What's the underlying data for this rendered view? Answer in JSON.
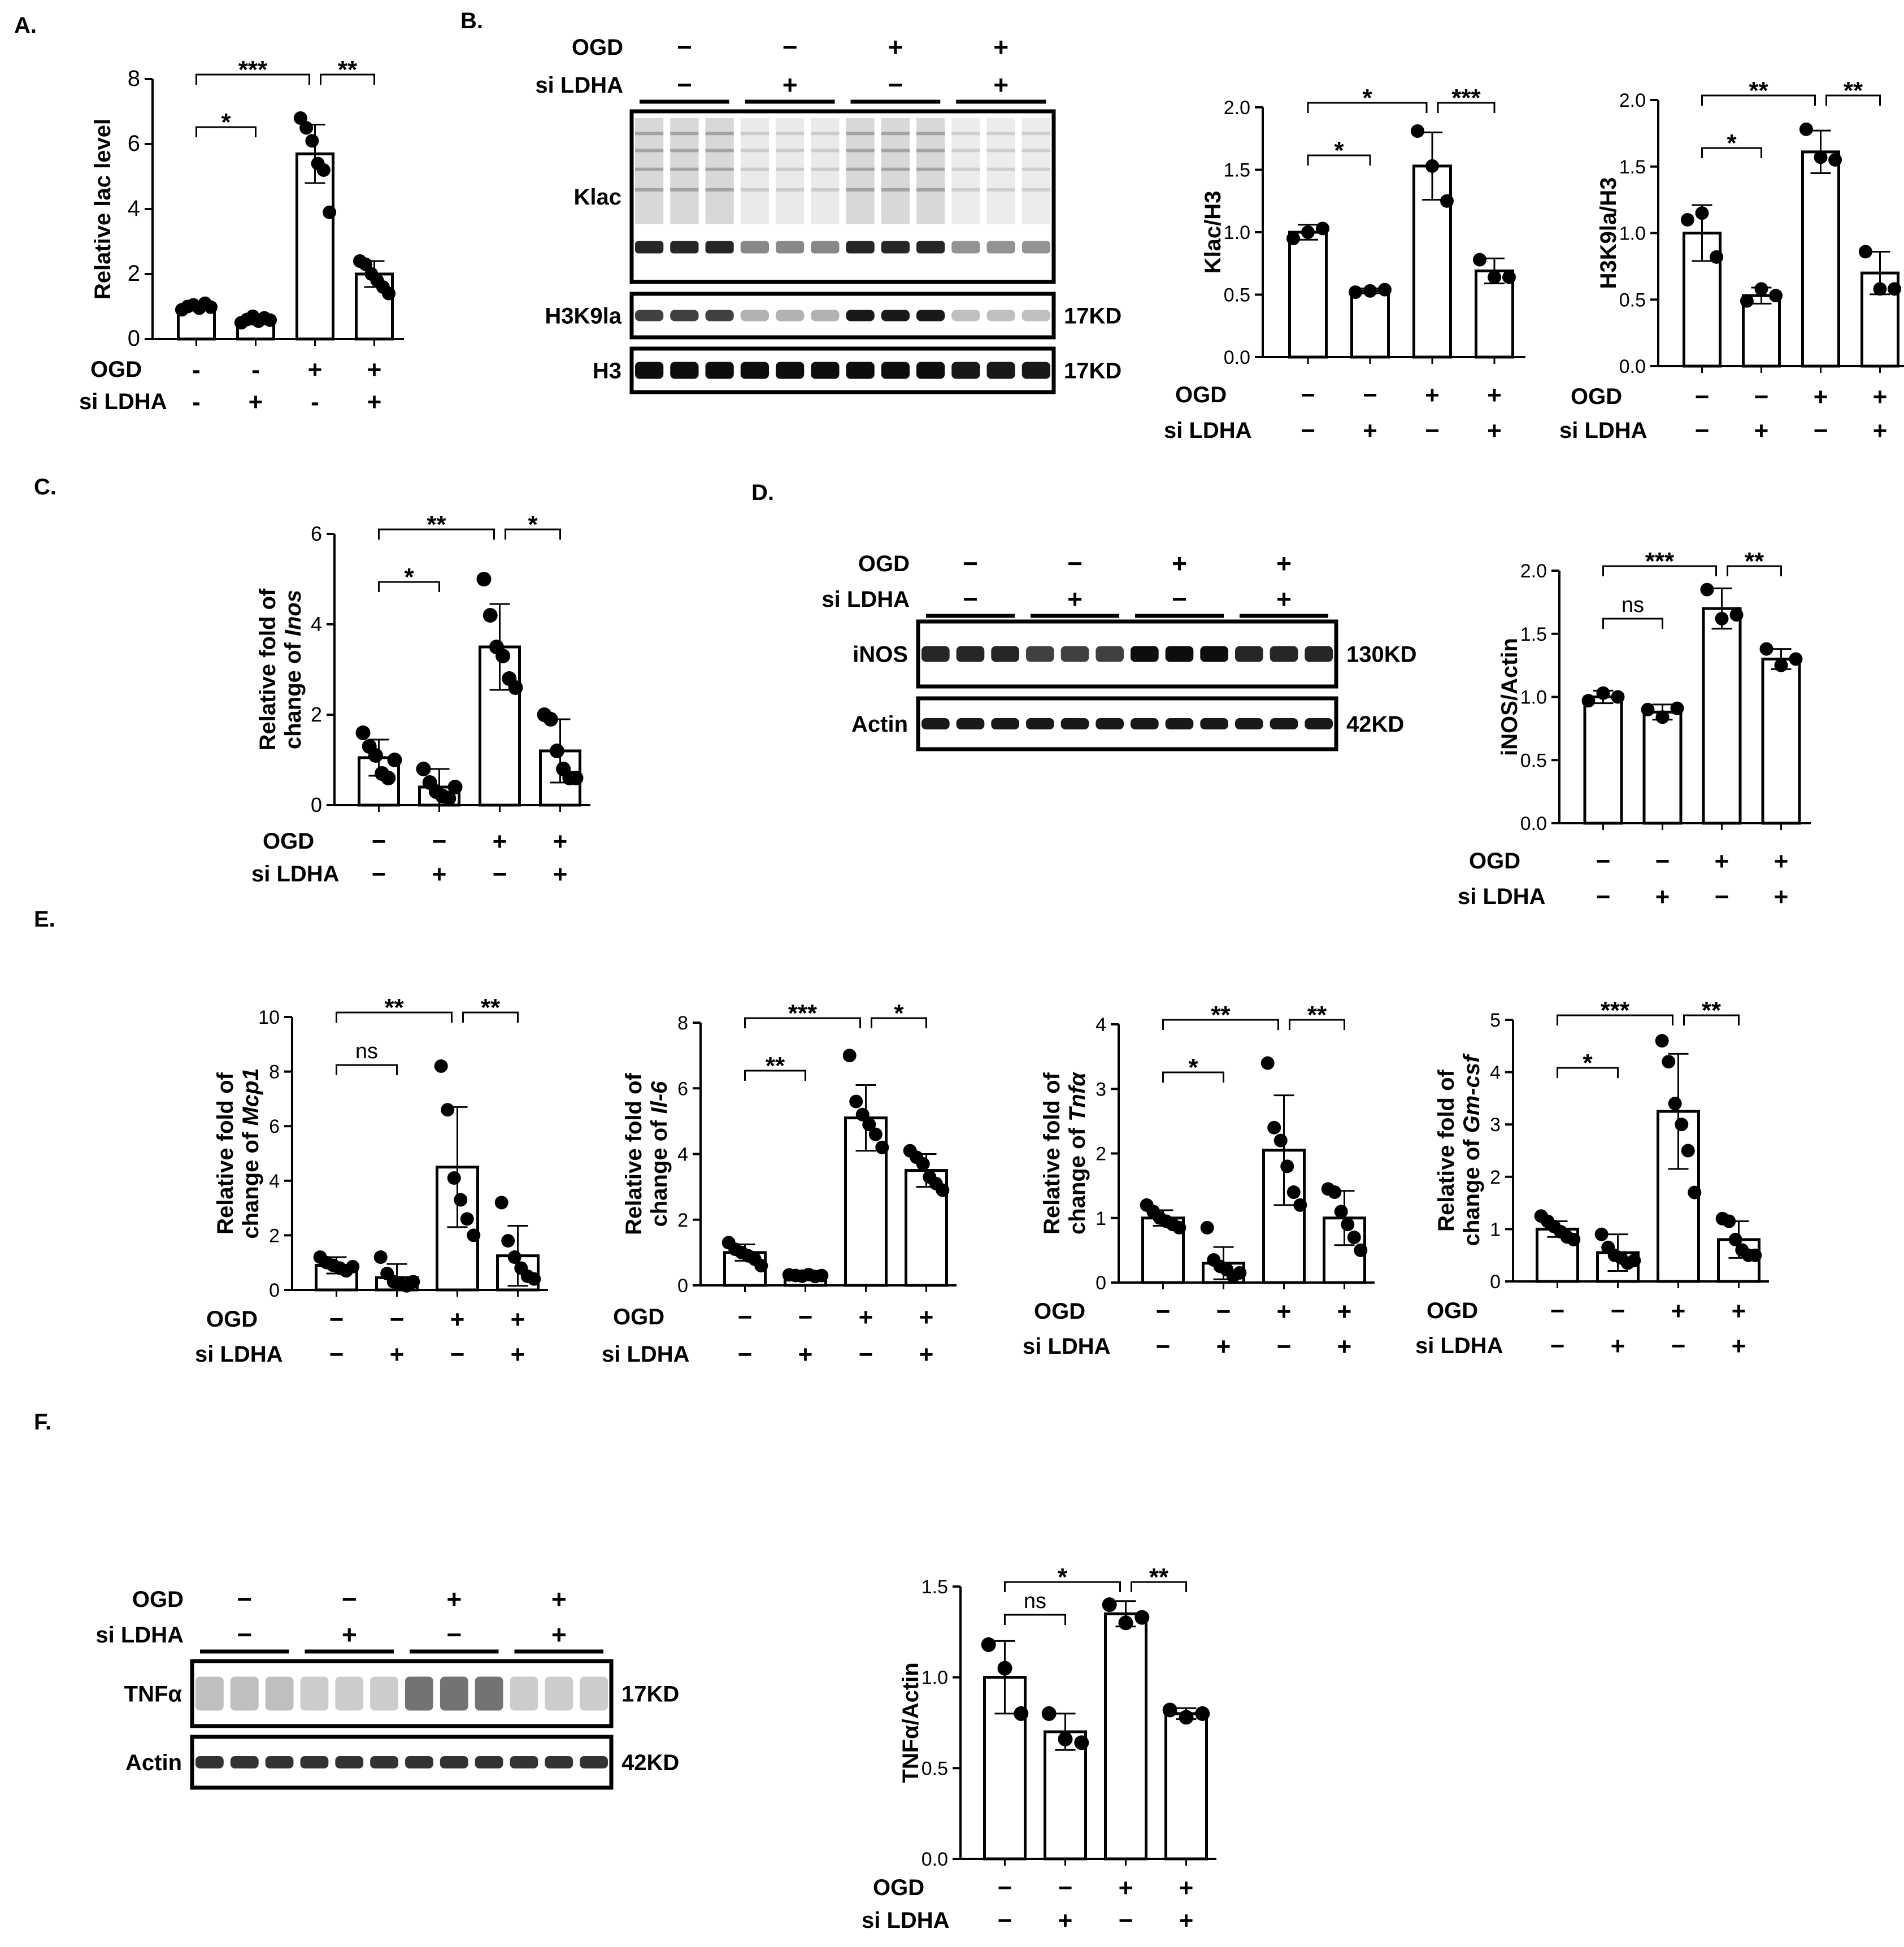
{
  "panels": {
    "a": "A.",
    "b": "B.",
    "c": "C.",
    "d": "D.",
    "e": "E.",
    "f": "F."
  },
  "conditions": {
    "ogd_label": "OGD",
    "si_label": "si LDHA",
    "ogd_signs_dash": [
      "-",
      "-",
      "+",
      "+"
    ],
    "si_signs_dash": [
      "-",
      "+",
      "-",
      "+"
    ],
    "ogd_signs": [
      "−",
      "−",
      "+",
      "+"
    ],
    "si_signs": [
      "−",
      "+",
      "−",
      "+"
    ]
  },
  "blots": {
    "b": {
      "rows": [
        {
          "label": "Klac",
          "size": ""
        },
        {
          "label": "H3K9la",
          "size": "17KD"
        },
        {
          "label": "H3",
          "size": "17KD"
        }
      ]
    },
    "d": {
      "rows": [
        {
          "label": "iNOS",
          "size": "130KD"
        },
        {
          "label": "Actin",
          "size": "42KD"
        }
      ]
    },
    "f": {
      "rows": [
        {
          "label": "TNFα",
          "size": "17KD"
        },
        {
          "label": "Actin",
          "size": "42KD"
        }
      ]
    }
  },
  "chart_data": [
    {
      "id": "A",
      "type": "bar",
      "ylabel": "Relative lac level",
      "ylabel_italic": "",
      "ylim": [
        0,
        8
      ],
      "yticks": [
        "0",
        "2",
        "4",
        "6",
        "8"
      ],
      "tickvals": [
        0,
        2,
        4,
        6,
        8
      ],
      "categories": [
        "OGD-/siLDHA-",
        "OGD-/siLDHA+",
        "OGD+/siLDHA-",
        "OGD+/siLDHA+"
      ],
      "values": [
        1.0,
        0.6,
        5.7,
        2.0
      ],
      "errors": [
        0.1,
        0.15,
        0.9,
        0.4
      ],
      "points": [
        [
          0.9,
          1.0,
          1.05,
          0.95,
          1.1,
          0.98
        ],
        [
          0.5,
          0.6,
          0.7,
          0.55,
          0.65,
          0.58
        ],
        [
          6.8,
          6.5,
          6.1,
          5.4,
          5.2,
          3.9
        ],
        [
          2.4,
          2.3,
          2.0,
          1.8,
          1.6,
          1.4
        ]
      ],
      "signs_style": "dash",
      "comparisons": [
        {
          "pair": [
            0,
            1
          ],
          "label": "*"
        },
        {
          "pair": [
            0,
            2
          ],
          "label": "***"
        },
        {
          "pair": [
            2,
            3
          ],
          "label": "**"
        }
      ]
    },
    {
      "id": "B1",
      "type": "bar",
      "ylabel": "Klac/H3",
      "ylabel_italic": "",
      "ylim": [
        0,
        2.0
      ],
      "yticks": [
        "0.0",
        "0.5",
        "1.0",
        "1.5",
        "2.0"
      ],
      "tickvals": [
        0,
        0.5,
        1.0,
        1.5,
        2.0
      ],
      "categories": [
        "OGD-/siLDHA-",
        "OGD-/siLDHA+",
        "OGD+/siLDHA-",
        "OGD+/siLDHA+"
      ],
      "values": [
        1.0,
        0.53,
        1.53,
        0.69
      ],
      "errors": [
        0.06,
        0.02,
        0.27,
        0.1
      ],
      "points": [
        [
          0.95,
          1.0,
          1.03
        ],
        [
          0.52,
          0.53,
          0.54
        ],
        [
          1.81,
          1.53,
          1.25
        ],
        [
          0.78,
          0.64,
          0.64
        ]
      ],
      "signs_style": "glyph",
      "comparisons": [
        {
          "pair": [
            0,
            1
          ],
          "label": "*"
        },
        {
          "pair": [
            0,
            2
          ],
          "label": "*"
        },
        {
          "pair": [
            2,
            3
          ],
          "label": "***"
        }
      ]
    },
    {
      "id": "B2",
      "type": "bar",
      "ylabel": "H3K9la/H3",
      "ylabel_italic": "",
      "ylim": [
        0,
        2.0
      ],
      "yticks": [
        "0.0",
        "0.5",
        "1.0",
        "1.5",
        "2.0"
      ],
      "tickvals": [
        0,
        0.5,
        1.0,
        1.5,
        2.0
      ],
      "categories": [
        "OGD-/siLDHA-",
        "OGD-/siLDHA+",
        "OGD+/siLDHA-",
        "OGD+/siLDHA+"
      ],
      "values": [
        1.0,
        0.53,
        1.61,
        0.7
      ],
      "errors": [
        0.21,
        0.06,
        0.16,
        0.16
      ],
      "points": [
        [
          1.1,
          1.15,
          0.82
        ],
        [
          0.49,
          0.58,
          0.53
        ],
        [
          1.78,
          1.57,
          1.55
        ],
        [
          0.86,
          0.58,
          0.58
        ]
      ],
      "signs_style": "glyph",
      "comparisons": [
        {
          "pair": [
            0,
            1
          ],
          "label": "*"
        },
        {
          "pair": [
            0,
            2
          ],
          "label": "**"
        },
        {
          "pair": [
            2,
            3
          ],
          "label": "**"
        }
      ]
    },
    {
      "id": "C",
      "type": "bar",
      "ylabel": "Relative fold of",
      "ylabel2": "change of ",
      "ylabel_italic": "Inos",
      "ylim": [
        0,
        6
      ],
      "yticks": [
        "0",
        "2",
        "4",
        "6"
      ],
      "tickvals": [
        0,
        2,
        4,
        6
      ],
      "categories": [
        "OGD-/siLDHA-",
        "OGD-/siLDHA+",
        "OGD+/siLDHA-",
        "OGD+/siLDHA+"
      ],
      "values": [
        1.05,
        0.4,
        3.5,
        1.2
      ],
      "errors": [
        0.4,
        0.4,
        0.95,
        0.7
      ],
      "points": [
        [
          1.6,
          1.3,
          1.1,
          0.7,
          0.6,
          1.0
        ],
        [
          0.8,
          0.5,
          0.3,
          0.2,
          0.15,
          0.4
        ],
        [
          5.0,
          4.2,
          3.5,
          3.3,
          2.8,
          2.6
        ],
        [
          2.0,
          1.9,
          1.2,
          0.8,
          0.6,
          0.6
        ]
      ],
      "signs_style": "glyph",
      "comparisons": [
        {
          "pair": [
            0,
            1
          ],
          "label": "*"
        },
        {
          "pair": [
            0,
            2
          ],
          "label": "**"
        },
        {
          "pair": [
            2,
            3
          ],
          "label": "*"
        }
      ]
    },
    {
      "id": "D",
      "type": "bar",
      "ylabel": "iNOS/Actin",
      "ylabel_italic": "",
      "ylim": [
        0,
        2.0
      ],
      "yticks": [
        "0.0",
        "0.5",
        "1.0",
        "1.5",
        "2.0"
      ],
      "tickvals": [
        0,
        0.5,
        1.0,
        1.5,
        2.0
      ],
      "categories": [
        "OGD-/siLDHA-",
        "OGD-/siLDHA+",
        "OGD+/siLDHA-",
        "OGD+/siLDHA+"
      ],
      "values": [
        1.0,
        0.88,
        1.7,
        1.3
      ],
      "errors": [
        0.05,
        0.06,
        0.16,
        0.08
      ],
      "points": [
        [
          0.97,
          1.03,
          1.0
        ],
        [
          0.9,
          0.84,
          0.91
        ],
        [
          1.85,
          1.62,
          1.65
        ],
        [
          1.38,
          1.25,
          1.3
        ]
      ],
      "signs_style": "glyph",
      "comparisons": [
        {
          "pair": [
            0,
            1
          ],
          "label": "ns"
        },
        {
          "pair": [
            0,
            2
          ],
          "label": "***"
        },
        {
          "pair": [
            2,
            3
          ],
          "label": "**"
        }
      ]
    },
    {
      "id": "E1",
      "type": "bar",
      "ylabel": "Relative fold of",
      "ylabel2": "change of ",
      "ylabel_italic": "Mcp1",
      "ylim": [
        0,
        10
      ],
      "yticks": [
        "0",
        "2",
        "4",
        "6",
        "8",
        "10"
      ],
      "tickvals": [
        0,
        2,
        4,
        6,
        8,
        10
      ],
      "categories": [
        "OGD-/siLDHA-",
        "OGD-/siLDHA+",
        "OGD+/siLDHA-",
        "OGD+/siLDHA+"
      ],
      "values": [
        0.9,
        0.45,
        4.5,
        1.25
      ],
      "errors": [
        0.3,
        0.5,
        2.2,
        1.1
      ],
      "points": [
        [
          1.2,
          1.0,
          0.9,
          0.8,
          0.7,
          0.85
        ],
        [
          1.2,
          0.6,
          0.3,
          0.2,
          0.15,
          0.3
        ],
        [
          8.2,
          6.6,
          4.1,
          3.3,
          2.6,
          2.0
        ],
        [
          3.2,
          1.8,
          1.2,
          0.8,
          0.5,
          0.4
        ]
      ],
      "signs_style": "glyph",
      "comparisons": [
        {
          "pair": [
            0,
            1
          ],
          "label": "ns"
        },
        {
          "pair": [
            0,
            2
          ],
          "label": "**"
        },
        {
          "pair": [
            2,
            3
          ],
          "label": "**"
        }
      ]
    },
    {
      "id": "E2",
      "type": "bar",
      "ylabel": "Relative fold of",
      "ylabel2": "change of ",
      "ylabel_italic": "Il-6",
      "ylim": [
        0,
        8
      ],
      "yticks": [
        "0",
        "2",
        "4",
        "6",
        "8"
      ],
      "tickvals": [
        0,
        2,
        4,
        6,
        8
      ],
      "categories": [
        "OGD-/siLDHA-",
        "OGD-/siLDHA+",
        "OGD+/siLDHA-",
        "OGD+/siLDHA+"
      ],
      "values": [
        1.0,
        0.3,
        5.1,
        3.5
      ],
      "errors": [
        0.25,
        0.05,
        1.0,
        0.5
      ],
      "points": [
        [
          1.3,
          1.1,
          1.0,
          0.9,
          0.8,
          0.6
        ],
        [
          0.32,
          0.3,
          0.28,
          0.33,
          0.27,
          0.3
        ],
        [
          7.0,
          5.6,
          5.2,
          4.9,
          4.6,
          4.2
        ],
        [
          4.1,
          3.9,
          3.7,
          3.3,
          3.1,
          2.9
        ]
      ],
      "signs_style": "glyph",
      "comparisons": [
        {
          "pair": [
            0,
            1
          ],
          "label": "**"
        },
        {
          "pair": [
            0,
            2
          ],
          "label": "***"
        },
        {
          "pair": [
            2,
            3
          ],
          "label": "*"
        }
      ]
    },
    {
      "id": "E3",
      "type": "bar",
      "ylabel": "Relative fold of",
      "ylabel2": "change of ",
      "ylabel_italic": "Tnfα",
      "ylim": [
        0,
        4
      ],
      "yticks": [
        "0",
        "1",
        "2",
        "3",
        "4"
      ],
      "tickvals": [
        0,
        1,
        2,
        3,
        4
      ],
      "categories": [
        "OGD-/siLDHA-",
        "OGD-/siLDHA+",
        "OGD+/siLDHA-",
        "OGD+/siLDHA+"
      ],
      "values": [
        1.0,
        0.3,
        2.05,
        1.0
      ],
      "errors": [
        0.12,
        0.25,
        0.85,
        0.42
      ],
      "points": [
        [
          1.2,
          1.1,
          1.0,
          0.95,
          0.9,
          0.85
        ],
        [
          0.85,
          0.35,
          0.25,
          0.2,
          0.1,
          0.15
        ],
        [
          3.4,
          2.4,
          2.2,
          1.8,
          1.4,
          1.2
        ],
        [
          1.45,
          1.4,
          1.1,
          0.9,
          0.7,
          0.5
        ]
      ],
      "signs_style": "glyph",
      "comparisons": [
        {
          "pair": [
            0,
            1
          ],
          "label": "*"
        },
        {
          "pair": [
            0,
            2
          ],
          "label": "**"
        },
        {
          "pair": [
            2,
            3
          ],
          "label": "**"
        }
      ]
    },
    {
      "id": "E4",
      "type": "bar",
      "ylabel": "Relative fold of",
      "ylabel2": "change of ",
      "ylabel_italic": "Gm-csf",
      "ylim": [
        0,
        5
      ],
      "yticks": [
        "0",
        "1",
        "2",
        "3",
        "4",
        "5"
      ],
      "tickvals": [
        0,
        1,
        2,
        3,
        4,
        5
      ],
      "categories": [
        "OGD-/siLDHA-",
        "OGD-/siLDHA+",
        "OGD+/siLDHA-",
        "OGD+/siLDHA+"
      ],
      "values": [
        1.0,
        0.55,
        3.25,
        0.8
      ],
      "errors": [
        0.15,
        0.35,
        1.1,
        0.35
      ],
      "points": [
        [
          1.25,
          1.15,
          1.05,
          0.95,
          0.85,
          0.8
        ],
        [
          0.9,
          0.65,
          0.5,
          0.45,
          0.35,
          0.4
        ],
        [
          4.6,
          4.2,
          3.4,
          3.0,
          2.5,
          1.7
        ],
        [
          1.2,
          1.15,
          0.8,
          0.6,
          0.5,
          0.5
        ]
      ],
      "signs_style": "glyph",
      "comparisons": [
        {
          "pair": [
            0,
            1
          ],
          "label": "*"
        },
        {
          "pair": [
            0,
            2
          ],
          "label": "***"
        },
        {
          "pair": [
            2,
            3
          ],
          "label": "**"
        }
      ]
    },
    {
      "id": "F",
      "type": "bar",
      "ylabel": "TNFα/Actin",
      "ylabel_italic": "",
      "ylim": [
        0,
        1.5
      ],
      "yticks": [
        "0.0",
        "0.5",
        "1.0",
        "1.5"
      ],
      "tickvals": [
        0,
        0.5,
        1.0,
        1.5
      ],
      "categories": [
        "OGD-/siLDHA-",
        "OGD-/siLDHA+",
        "OGD+/siLDHA-",
        "OGD+/siLDHA+"
      ],
      "values": [
        1.0,
        0.7,
        1.35,
        0.8
      ],
      "errors": [
        0.2,
        0.1,
        0.07,
        0.03
      ],
      "points": [
        [
          1.18,
          1.05,
          0.8
        ],
        [
          0.8,
          0.66,
          0.64
        ],
        [
          1.4,
          1.3,
          1.33
        ],
        [
          0.82,
          0.78,
          0.8
        ]
      ],
      "signs_style": "glyph",
      "comparisons": [
        {
          "pair": [
            0,
            1
          ],
          "label": "ns"
        },
        {
          "pair": [
            0,
            2
          ],
          "label": "*"
        },
        {
          "pair": [
            2,
            3
          ],
          "label": "**"
        }
      ]
    }
  ]
}
